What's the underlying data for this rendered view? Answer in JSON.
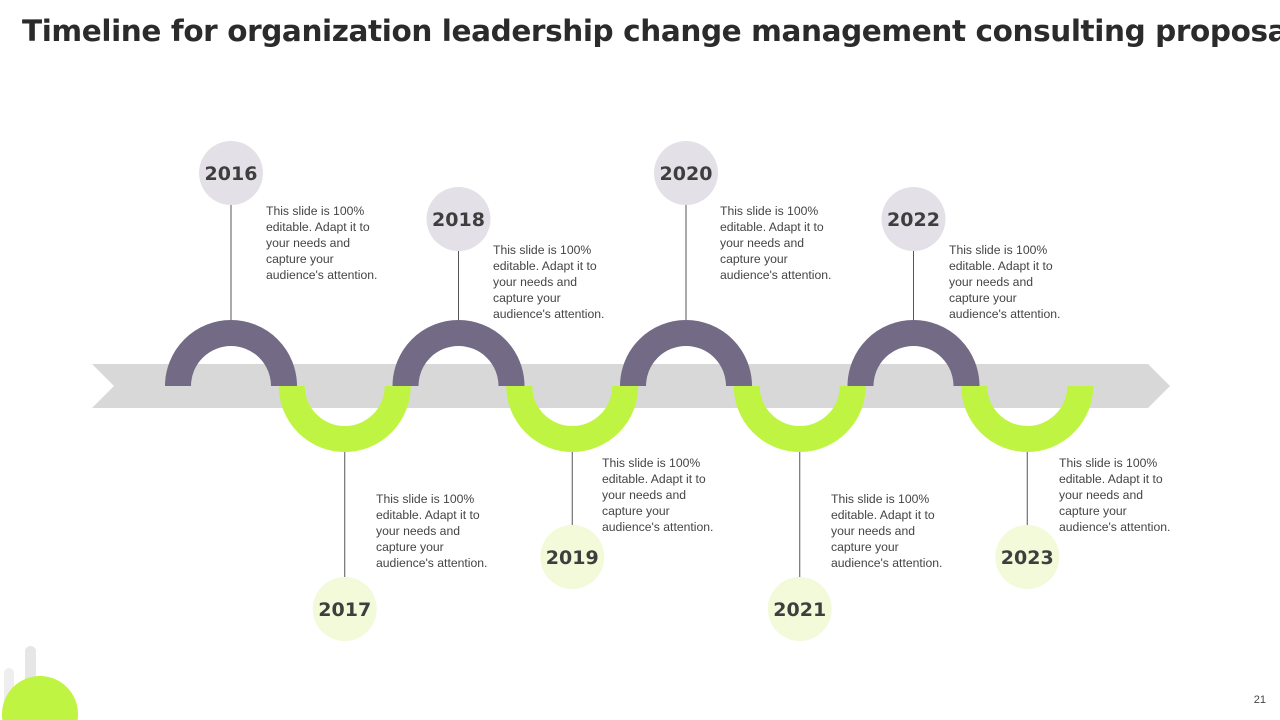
{
  "slide": {
    "title": "Timeline for organization leadership change management consulting proposal",
    "page_number": "21"
  },
  "colors": {
    "accent_purple": "#736a85",
    "accent_green": "#bff542",
    "arrow_gray": "#d8d8d8",
    "badge_gray": "#e3e1e7",
    "badge_green": "#f2fad9",
    "connector": "#555555",
    "badge_text": "#3e3e3e"
  },
  "milestones": [
    {
      "year": "2016",
      "description": "This slide is 100% editable. Adapt it to your needs and capture your audience's attention."
    },
    {
      "year": "2017",
      "description": "This slide is 100% editable. Adapt it to your needs and capture your audience's attention."
    },
    {
      "year": "2018",
      "description": "This slide is 100% editable. Adapt it to your needs and capture your audience's attention."
    },
    {
      "year": "2019",
      "description": "This slide is 100% editable. Adapt it to your needs and capture your audience's attention."
    },
    {
      "year": "2020",
      "description": "This slide is 100% editable. Adapt it to your needs and capture your audience's attention."
    },
    {
      "year": "2021",
      "description": "This slide is 100% editable. Adapt it to your needs and capture your audience's attention."
    },
    {
      "year": "2022",
      "description": "This slide is 100% editable. Adapt it to your needs and capture your audience's attention."
    },
    {
      "year": "2023",
      "description": "This slide is 100% editable. Adapt it to your needs and capture your audience's attention."
    }
  ]
}
